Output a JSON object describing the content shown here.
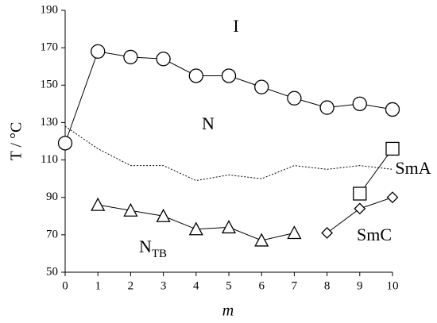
{
  "chart_data": {
    "type": "line",
    "x_label": "m",
    "y_label": "T / °C",
    "xlim": [
      0,
      10
    ],
    "xticks": [
      0,
      1,
      2,
      3,
      4,
      5,
      6,
      7,
      8,
      9,
      10
    ],
    "ylim": [
      50,
      190
    ],
    "yticks": [
      50,
      70,
      90,
      110,
      130,
      150,
      170,
      190
    ],
    "annotations": [
      "I",
      "N",
      "SmA",
      "SmC"
    ],
    "ntb_label": {
      "main": "N",
      "sub": "TB"
    },
    "series": [
      {
        "marker": "circle",
        "line": "solid",
        "color": "#000000",
        "x": [
          0,
          1,
          2,
          3,
          4,
          5,
          6,
          7,
          8,
          9,
          10
        ],
        "values": [
          119,
          168,
          165,
          164,
          155,
          155,
          149,
          143,
          138,
          140,
          137
        ]
      },
      {
        "marker": "none",
        "line": "dotted",
        "color": "#000000",
        "x": [
          0,
          1,
          2,
          3,
          4,
          5,
          6,
          7,
          8,
          9,
          10
        ],
        "values": [
          128,
          116,
          107,
          107,
          99,
          102,
          100,
          107,
          105,
          107,
          105
        ]
      },
      {
        "marker": "triangle",
        "line": "solid",
        "color": "#000000",
        "x": [
          1,
          2,
          3,
          4,
          5,
          6,
          7
        ],
        "values": [
          86,
          83,
          80,
          73,
          74,
          67,
          71
        ]
      },
      {
        "marker": "square",
        "line": "solid",
        "color": "#000000",
        "x": [
          9,
          10
        ],
        "values": [
          92,
          116
        ]
      },
      {
        "marker": "diamond",
        "line": "solid",
        "color": "#000000",
        "x": [
          8,
          9,
          10
        ],
        "values": [
          71,
          84,
          90
        ]
      }
    ]
  }
}
